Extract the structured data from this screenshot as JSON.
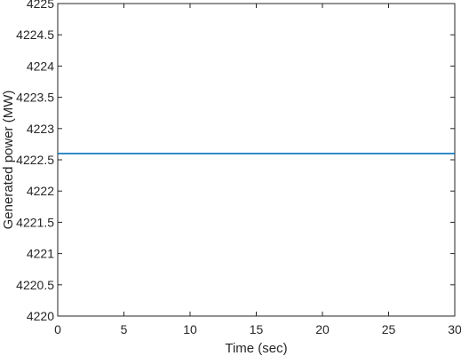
{
  "chart_data": {
    "type": "line",
    "title": "",
    "xlabel": "Time (sec)",
    "ylabel": "Generated power (MW)",
    "xlim": [
      0,
      30
    ],
    "ylim": [
      4220,
      4225
    ],
    "xticks": [
      0,
      5,
      10,
      15,
      20,
      25,
      30
    ],
    "xtick_labels": [
      "0",
      "5",
      "10",
      "15",
      "20",
      "25",
      "30"
    ],
    "yticks": [
      4220,
      4220.5,
      4221,
      4221.5,
      4222,
      4222.5,
      4223,
      4223.5,
      4224,
      4224.5,
      4225
    ],
    "ytick_labels": [
      "4220",
      "4220.5",
      "4221",
      "4221.5",
      "4222",
      "4222.5",
      "4223",
      "4223.5",
      "4224",
      "4224.5",
      "4225"
    ],
    "grid": false,
    "legend": "none",
    "series": [
      {
        "color": "#0072BD",
        "x": [
          0,
          30
        ],
        "y": [
          4222.6,
          4222.6
        ]
      }
    ]
  }
}
